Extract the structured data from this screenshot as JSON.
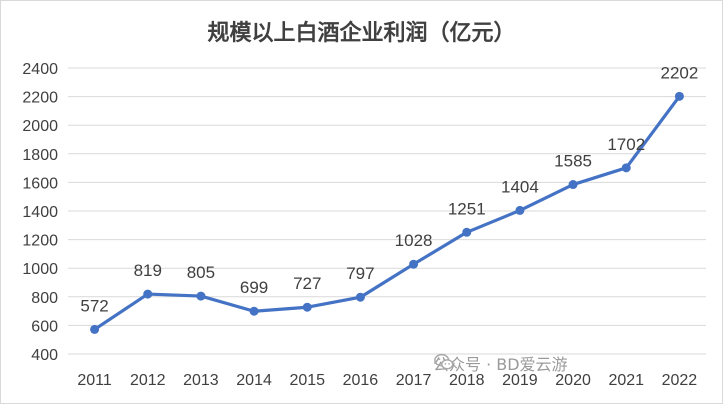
{
  "chart_data": {
    "type": "line",
    "title": "规模以上白酒企业利润（亿元）",
    "categories": [
      "2011",
      "2012",
      "2013",
      "2014",
      "2015",
      "2016",
      "2017",
      "2018",
      "2019",
      "2020",
      "2021",
      "2022"
    ],
    "series": [
      {
        "values": [
          572,
          819,
          805,
          699,
          727,
          797,
          1028,
          1251,
          1404,
          1585,
          1702,
          2202
        ]
      }
    ],
    "ylim": [
      400,
      2400
    ],
    "yticks": [
      400,
      600,
      800,
      1000,
      1200,
      1400,
      1600,
      1800,
      2000,
      2200,
      2400
    ],
    "grid": true,
    "data_labels": true,
    "line_color": "#4472c4",
    "grid_color": "#d9d9d9"
  },
  "watermark": {
    "text": "公众号 · BD爱云游",
    "icon": "wechat-icon"
  }
}
